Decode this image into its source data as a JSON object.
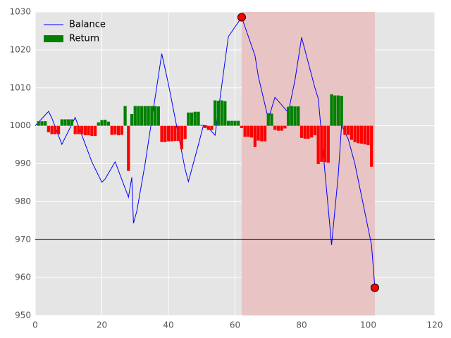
{
  "chart_data": {
    "type": "line",
    "background": "#e5e5e5",
    "grid": true,
    "grid_color": "#ffffff",
    "legend": "upper left",
    "xlim": [
      0,
      120
    ],
    "xticks": [
      0,
      20,
      40,
      60,
      80,
      100,
      120
    ],
    "ylim": [
      950,
      1030
    ],
    "yticks": [
      950,
      960,
      970,
      980,
      990,
      1000,
      1010,
      1020,
      1030
    ],
    "series": [
      {
        "name": "Balance",
        "type": "line",
        "color": "#0000ff",
        "x": [
          0,
          4,
          5,
          8,
          12,
          17,
          20,
          21,
          23,
          24,
          28,
          29,
          29.5,
          30.5,
          33,
          38,
          40,
          45,
          46,
          49,
          50.5,
          51.5,
          54,
          58,
          62,
          66,
          67,
          70,
          72,
          76,
          78,
          80,
          84,
          85,
          89,
          91,
          92,
          94,
          96,
          101,
          102
        ],
        "values": [
          1000,
          1003.8,
          1002,
          995.1,
          1002.2,
          990.5,
          985.1,
          986,
          989,
          990.5,
          981.2,
          986.4,
          974.3,
          977.5,
          990,
          1019,
          1011,
          988.6,
          985.3,
          995,
          1000.1,
          1000,
          997.5,
          1023.5,
          1028.6,
          1018.5,
          1013,
          1001.8,
          1007.5,
          1003.5,
          1012,
          1023.3,
          1010,
          1007.2,
          968.6,
          987,
          1000.1,
          996.5,
          990,
          968.6,
          957.3
        ]
      },
      {
        "name": "Return",
        "type": "bar",
        "color": "#008000",
        "negative_color": "#ff0000",
        "base": 1000,
        "x": [
          1,
          2,
          3,
          4,
          5,
          6,
          7,
          8,
          9,
          10,
          11,
          12,
          13,
          14,
          15,
          16,
          17,
          18,
          19,
          20,
          21,
          22,
          23,
          24,
          25,
          26,
          27,
          28,
          29,
          30,
          31,
          32,
          33,
          34,
          35,
          36,
          37,
          38,
          39,
          40,
          41,
          42,
          43,
          44,
          45,
          46,
          47,
          48,
          49,
          50,
          51,
          52,
          53,
          54,
          55,
          56,
          57,
          58,
          59,
          60,
          61,
          62,
          63,
          64,
          65,
          66,
          67,
          68,
          69,
          70,
          71,
          72,
          73,
          74,
          75,
          76,
          77,
          78,
          79,
          80,
          81,
          82,
          83,
          84,
          85,
          86,
          87,
          88,
          89,
          90,
          91,
          92,
          93,
          94,
          95,
          96,
          97,
          98,
          99,
          100,
          101
        ],
        "values": [
          1001.2,
          1001.2,
          1001.2,
          998.3,
          997.8,
          997.8,
          997.8,
          1001.7,
          1001.7,
          1001.7,
          1001.7,
          997.8,
          997.8,
          997.8,
          997.5,
          997.5,
          997.3,
          997.3,
          1000.9,
          1001.5,
          1001.6,
          1001.1,
          997.6,
          997.7,
          997.5,
          997.6,
          1005.2,
          988.1,
          1003.1,
          1005.2,
          1005.2,
          1005.2,
          1005.2,
          1005.2,
          1005.2,
          1005.2,
          1005.1,
          995.7,
          995.7,
          995.9,
          995.9,
          996,
          996,
          993.8,
          996.5,
          1003.5,
          1003.5,
          1003.7,
          1003.7,
          1000.2,
          999.4,
          998.9,
          998.9,
          1006.7,
          1006.6,
          1006.7,
          1006.5,
          1001.3,
          1001.3,
          1001.3,
          1001.3,
          999.4,
          997.1,
          997.1,
          996.9,
          994.4,
          996.1,
          995.9,
          995.9,
          1003.3,
          1003.2,
          998.9,
          998.7,
          998.7,
          999.3,
          1005,
          1005.2,
          1005.1,
          1005.1,
          996.8,
          996.6,
          996.6,
          996.9,
          997.5,
          989.9,
          990.5,
          990.4,
          990.3,
          1008.3,
          1008,
          1008,
          1007.9,
          997.6,
          997.6,
          996.3,
          995.7,
          995.4,
          995.3,
          995.1,
          994.9,
          989.2
        ]
      }
    ],
    "span": {
      "x": [
        62,
        102
      ],
      "color": "#e8c4c4"
    },
    "hline": {
      "value": 970,
      "color": "#000000"
    },
    "markers": {
      "x": [
        62,
        102
      ],
      "values": [
        1028.6,
        957.3
      ],
      "color": "#ff0000"
    }
  }
}
